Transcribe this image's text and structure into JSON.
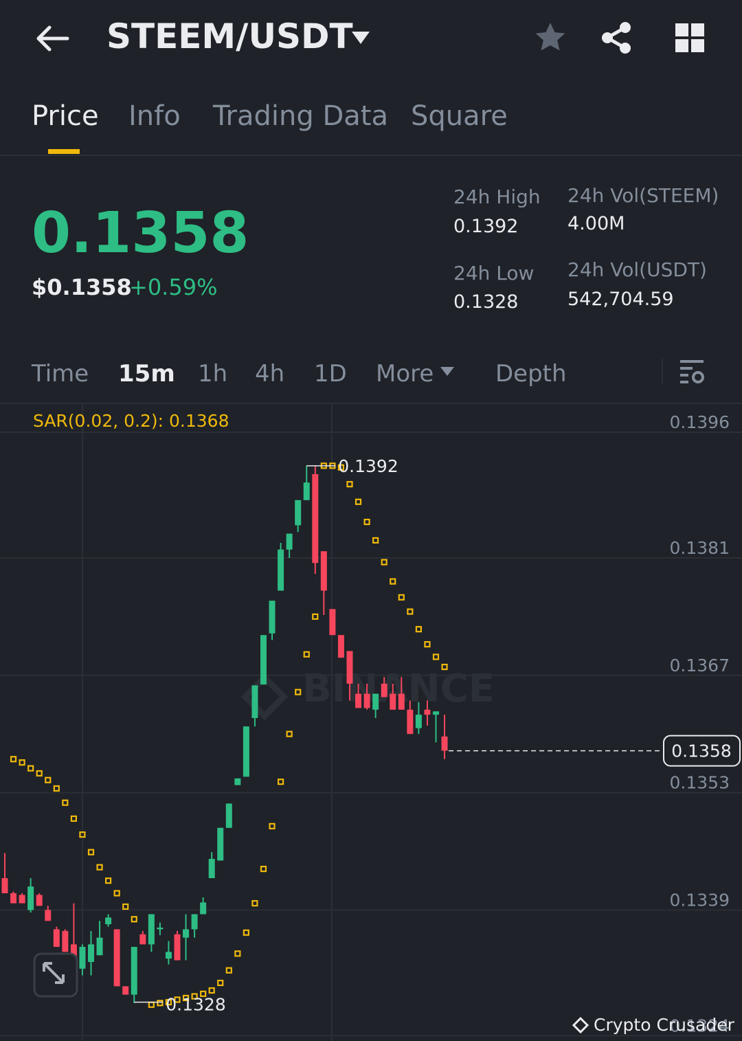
{
  "header": {
    "pair": "STEEM/USDT"
  },
  "tabs": [
    "Price",
    "Info",
    "Trading Data",
    "Square"
  ],
  "price": {
    "last": "0.1358",
    "usd": "$0.1358",
    "change": "+0.59%"
  },
  "stats": [
    {
      "label": "24h High",
      "value": "0.1392"
    },
    {
      "label": "24h Vol(STEEM)",
      "value": "4.00M"
    },
    {
      "label": "24h Low",
      "value": "0.1328"
    },
    {
      "label": "24h Vol(USDT)",
      "value": "542,704.59"
    }
  ],
  "intervals": [
    "Time",
    "15m",
    "1h",
    "4h",
    "1D",
    "More",
    "Depth"
  ],
  "watermark": "Crypto Crusader",
  "chart_data": {
    "type": "candlestick",
    "indicator_label": "SAR(0.02, 0.2): 0.1368",
    "logo": "BINANCE",
    "up_color": "#2ebd85",
    "down_color": "#f6465d",
    "sar_color": "#f0b90b",
    "ylim": [
      0.13246,
      0.13992
    ],
    "yticks": [
      0.1396,
      0.1381,
      0.1367,
      0.1353,
      0.1339,
      0.1324
    ],
    "grid": true,
    "last_price": 0.1358,
    "high_mark": 0.1392,
    "low_mark": 0.1328,
    "open": [
      0.13428,
      0.1341,
      0.13408,
      0.1339,
      0.13408,
      0.1339,
      0.13367,
      0.13365,
      0.13349,
      0.1332,
      0.13328,
      0.13336,
      0.13373,
      0.13367,
      0.13299,
      0.13289,
      0.13361,
      0.13349,
      0.13367,
      0.13332,
      0.13361,
      0.13357,
      0.13367,
      0.13385,
      0.13428,
      0.13449,
      0.13488,
      0.13539,
      0.13549,
      0.13619,
      0.13659,
      0.1372,
      0.13771,
      0.1382,
      0.13849,
      0.13879,
      0.1391,
      0.13818,
      0.13749,
      0.13718,
      0.13699,
      0.13648,
      0.13648,
      0.13629,
      0.1366,
      0.13648,
      0.13648,
      0.13629,
      0.13607,
      0.13629,
      0.13623,
      0.13597
    ],
    "high": [
      0.13458,
      0.13412,
      0.1341,
      0.13428,
      0.1341,
      0.13395,
      0.1337,
      0.13367,
      0.13398,
      0.13349,
      0.13365,
      0.13377,
      0.13385,
      0.13367,
      0.13299,
      0.13346,
      0.13365,
      0.13385,
      0.13375,
      0.13353,
      0.13365,
      0.13385,
      0.13385,
      0.13405,
      0.13459,
      0.13488,
      0.13517,
      0.13547,
      0.13609,
      0.13658,
      0.13718,
      0.13759,
      0.13828,
      0.13839,
      0.13879,
      0.1392,
      0.1392,
      0.13818,
      0.13749,
      0.13718,
      0.13699,
      0.1366,
      0.1366,
      0.13648,
      0.13668,
      0.1366,
      0.13668,
      0.1364,
      0.13638,
      0.1364,
      0.13627,
      0.13623
    ],
    "low": [
      0.1341,
      0.13398,
      0.13398,
      0.13387,
      0.13395,
      0.13377,
      0.13346,
      0.1334,
      0.1332,
      0.13312,
      0.13312,
      0.13336,
      0.1337,
      0.13299,
      0.13289,
      0.13279,
      0.13349,
      0.1334,
      0.1336,
      0.13325,
      0.1333,
      0.1333,
      0.13357,
      0.13385,
      0.13428,
      0.13449,
      0.13488,
      0.13539,
      0.13549,
      0.13609,
      0.13659,
      0.13712,
      0.13771,
      0.1381,
      0.13841,
      0.13879,
      0.13791,
      0.13742,
      0.13718,
      0.13691,
      0.1364,
      0.13631,
      0.13629,
      0.13619,
      0.13644,
      0.13629,
      0.13629,
      0.136,
      0.136,
      0.1361,
      0.1359,
      0.1357
    ],
    "close": [
      0.1341,
      0.13398,
      0.13398,
      0.13418,
      0.13395,
      0.13377,
      0.13346,
      0.1334,
      0.1332,
      0.13346,
      0.13349,
      0.13357,
      0.13381,
      0.13299,
      0.13289,
      0.13346,
      0.13349,
      0.13385,
      0.13369,
      0.1334,
      0.1333,
      0.13367,
      0.13385,
      0.13399,
      0.13451,
      0.13488,
      0.13517,
      0.13547,
      0.13609,
      0.13658,
      0.13718,
      0.13759,
      0.1382,
      0.13839,
      0.13879,
      0.139,
      0.13804,
      0.13771,
      0.13718,
      0.13691,
      0.1366,
      0.13631,
      0.13631,
      0.13648,
      0.13644,
      0.13629,
      0.13629,
      0.136,
      0.13623,
      0.13623,
      0.13627,
      0.1358
    ],
    "sar": [
      null,
      0.1357,
      0.13566,
      0.13559,
      0.13553,
      0.13545,
      0.13535,
      0.13518,
      0.13499,
      0.1348,
      0.13459,
      0.13441,
      0.13425,
      0.1341,
      0.13394,
      0.13379,
      null,
      0.13277,
      0.13279,
      0.1328,
      0.13283,
      0.13285,
      0.13287,
      0.1329,
      0.13294,
      0.13303,
      0.13318,
      0.13338,
      0.13363,
      0.13398,
      0.13439,
      0.1349,
      0.13543,
      0.136,
      0.1365,
      0.13695,
      0.1374,
      0.1392,
      0.1392,
      0.13918,
      0.13898,
      0.13877,
      0.13853,
      0.13831,
      0.13805,
      0.13782,
      0.13763,
      0.13746,
      0.13725,
      0.13707,
      0.13692,
      0.1368
    ]
  }
}
